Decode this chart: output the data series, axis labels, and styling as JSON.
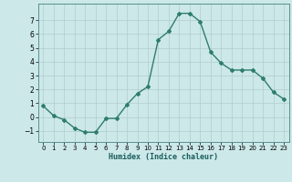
{
  "x": [
    0,
    1,
    2,
    3,
    4,
    5,
    6,
    7,
    8,
    9,
    10,
    11,
    12,
    13,
    14,
    15,
    16,
    17,
    18,
    19,
    20,
    21,
    22,
    23
  ],
  "y": [
    0.8,
    0.1,
    -0.2,
    -0.8,
    -1.1,
    -1.1,
    -0.1,
    -0.1,
    0.9,
    1.7,
    2.2,
    5.6,
    6.2,
    7.5,
    7.5,
    6.9,
    4.7,
    3.9,
    3.4,
    3.4,
    3.4,
    2.8,
    1.8,
    1.3
  ],
  "xlim": [
    -0.5,
    23.5
  ],
  "ylim": [
    -1.8,
    8.2
  ],
  "yticks": [
    -1,
    0,
    1,
    2,
    3,
    4,
    5,
    6,
    7
  ],
  "xticks": [
    0,
    1,
    2,
    3,
    4,
    5,
    6,
    7,
    8,
    9,
    10,
    11,
    12,
    13,
    14,
    15,
    16,
    17,
    18,
    19,
    20,
    21,
    22,
    23
  ],
  "xlabel": "Humidex (Indice chaleur)",
  "line_color": "#2e7d6e",
  "marker": "D",
  "marker_size": 2.0,
  "bg_color": "#cce8e8",
  "grid_color": "#b0cccc",
  "line_width": 1.0
}
